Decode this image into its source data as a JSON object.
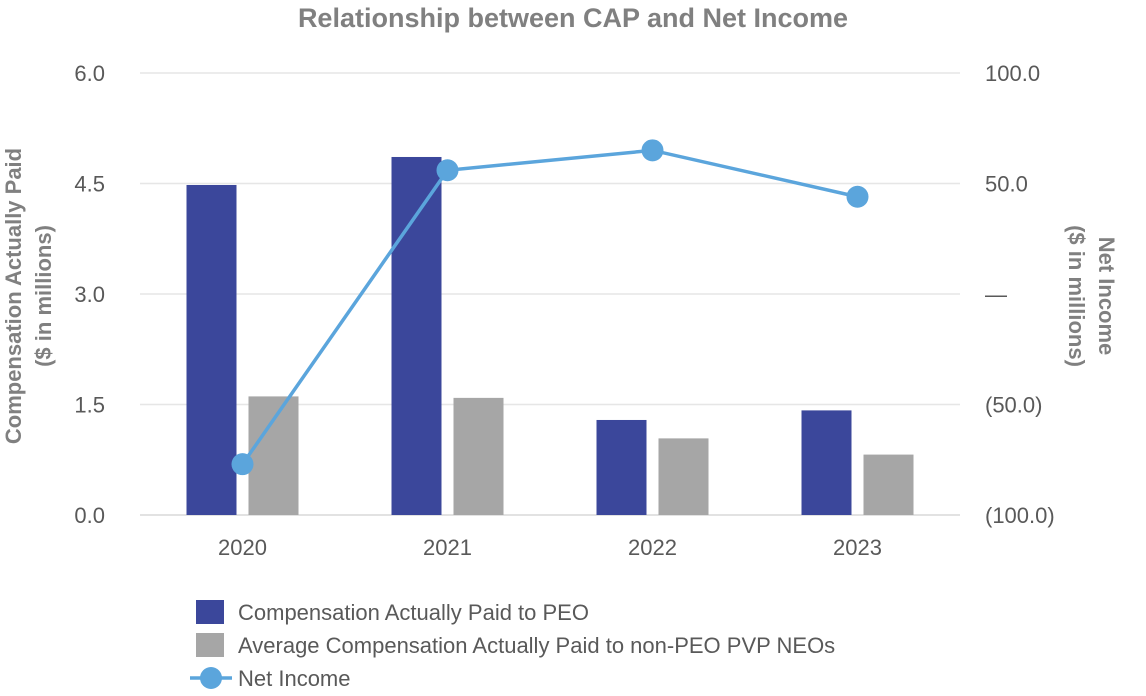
{
  "chart_data": {
    "type": "bar",
    "title": "Relationship between CAP and Net Income",
    "categories": [
      "2020",
      "2021",
      "2022",
      "2023"
    ],
    "series": [
      {
        "name": "Compensation Actually Paid to PEO",
        "type": "bar",
        "axis": "left",
        "color": "#3b479b",
        "values": [
          4.48,
          4.86,
          1.29,
          1.42
        ]
      },
      {
        "name": "Average Compensation Actually Paid to non-PEO PVP NEOs",
        "type": "bar",
        "axis": "left",
        "color": "#a6a6a6",
        "values": [
          1.61,
          1.59,
          1.04,
          0.82
        ]
      },
      {
        "name": "Net Income",
        "type": "line",
        "axis": "right",
        "color": "#5ba5dc",
        "values": [
          -77,
          56,
          65,
          44
        ]
      }
    ],
    "left_axis": {
      "label_line1": "Compensation Actually Paid",
      "label_line2": "($ in millions)",
      "min": 0,
      "max": 6,
      "step": 1.5,
      "ticks": [
        "0.0",
        "1.5",
        "3.0",
        "4.5",
        "6.0"
      ]
    },
    "right_axis": {
      "label_line1": "Net Income",
      "label_line2": "($ in millions)",
      "min": -100,
      "max": 100,
      "step": 50,
      "ticks": [
        "(100.0)",
        "(50.0)",
        "—",
        "50.0",
        "100.0"
      ]
    },
    "legend_position": "bottom-left",
    "grid": true
  }
}
